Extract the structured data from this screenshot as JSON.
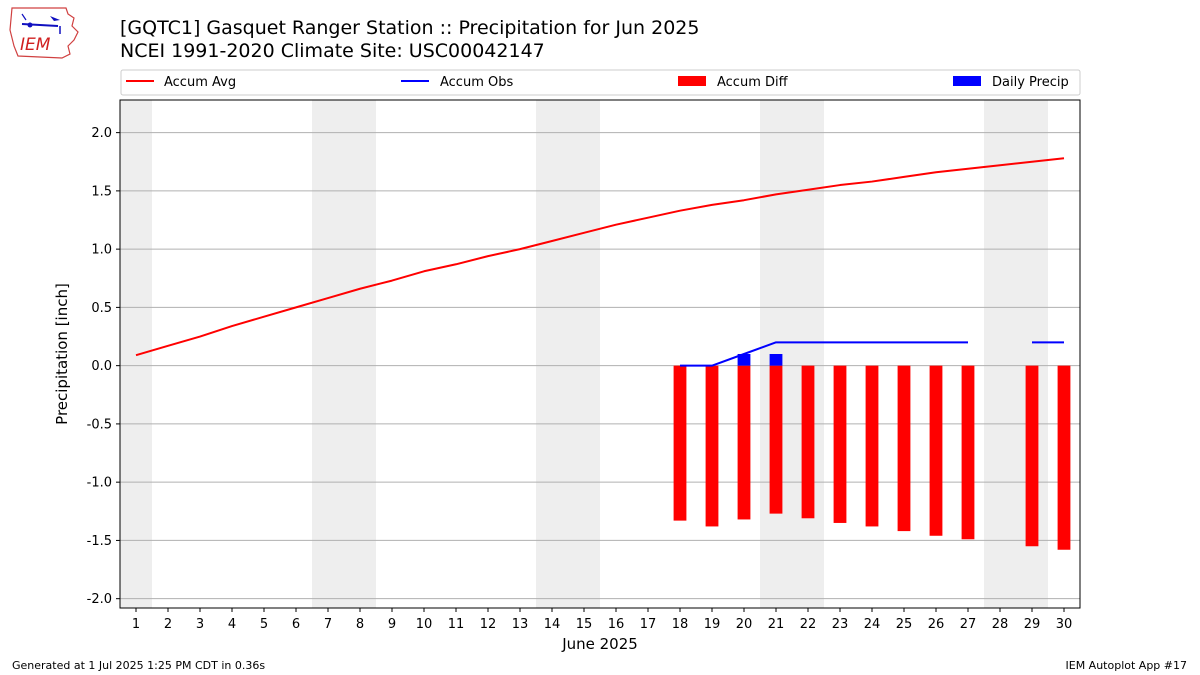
{
  "logo": {
    "text": "IEM"
  },
  "title": "[GQTC1] Gasquet Ranger Station :: Precipitation for Jun 2025",
  "subtitle": "NCEI 1991-2020 Climate Site: USC00042147",
  "footer": {
    "left": "Generated at 1 Jul 2025 1:25 PM CDT in 0.36s",
    "right": "IEM Autoplot App #17"
  },
  "colors": {
    "accum_avg": "#ff0000",
    "accum_obs": "#0000ff",
    "accum_diff": "#ff0000",
    "daily_precip": "#0000ff",
    "weekend_shade": "#eeeeee",
    "grid": "#b0b0b0"
  },
  "chart_data": {
    "type": "line",
    "xlabel": "June 2025",
    "ylabel": "Precipitation [inch]",
    "xlim": [
      0.5,
      30.5
    ],
    "ylim": [
      -2.08,
      2.28
    ],
    "grid": true,
    "legend_placement": "top (above plot, single row)",
    "x_ticks": [
      1,
      2,
      3,
      4,
      5,
      6,
      7,
      8,
      9,
      10,
      11,
      12,
      13,
      14,
      15,
      16,
      17,
      18,
      19,
      20,
      21,
      22,
      23,
      24,
      25,
      26,
      27,
      28,
      29,
      30
    ],
    "y_ticks": [
      "2.0",
      "1.5",
      "1.0",
      "0.5",
      "0.0",
      "-0.5",
      "-1.0",
      "-1.5",
      "-2.0"
    ],
    "y_tick_values": [
      2.0,
      1.5,
      1.0,
      0.5,
      0.0,
      -0.5,
      -1.0,
      -1.5,
      -2.0
    ],
    "weekend_days": [
      1,
      7,
      8,
      14,
      15,
      21,
      22,
      28,
      29
    ],
    "legend": [
      "Accum Avg",
      "Accum Obs",
      "Accum Diff",
      "Daily Precip"
    ],
    "accum_avg": {
      "x": [
        1,
        2,
        3,
        4,
        5,
        6,
        7,
        8,
        9,
        10,
        11,
        12,
        13,
        14,
        15,
        16,
        17,
        18,
        19,
        20,
        21,
        22,
        23,
        24,
        25,
        26,
        27,
        28,
        29,
        30
      ],
      "y": [
        0.09,
        0.17,
        0.25,
        0.34,
        0.42,
        0.5,
        0.58,
        0.66,
        0.73,
        0.81,
        0.87,
        0.94,
        1.0,
        1.07,
        1.14,
        1.21,
        1.27,
        1.33,
        1.38,
        1.42,
        1.47,
        1.51,
        1.55,
        1.58,
        1.62,
        1.66,
        1.69,
        1.72,
        1.75,
        1.78
      ]
    },
    "accum_obs": {
      "segments": [
        {
          "x": [
            18,
            19,
            20,
            21,
            22,
            23,
            24,
            25,
            26,
            27
          ],
          "y": [
            0.0,
            0.0,
            0.1,
            0.2,
            0.2,
            0.2,
            0.2,
            0.2,
            0.2,
            0.2
          ]
        },
        {
          "x": [
            29,
            30
          ],
          "y": [
            0.2,
            0.2
          ]
        }
      ]
    },
    "accum_diff": {
      "x": [
        18,
        19,
        20,
        21,
        22,
        23,
        24,
        25,
        26,
        27,
        29,
        30
      ],
      "y": [
        -1.33,
        -1.38,
        -1.32,
        -1.27,
        -1.31,
        -1.35,
        -1.38,
        -1.42,
        -1.46,
        -1.49,
        -1.55,
        -1.58
      ]
    },
    "daily_precip": {
      "x": [
        20,
        21
      ],
      "y": [
        0.1,
        0.1
      ]
    }
  }
}
